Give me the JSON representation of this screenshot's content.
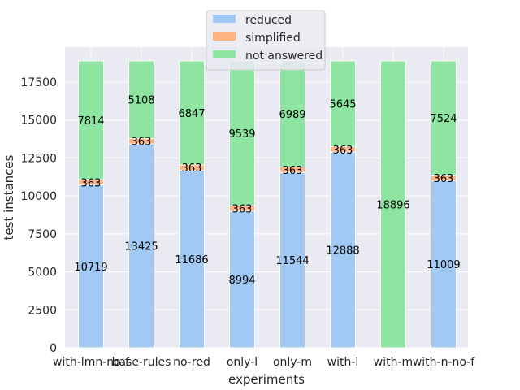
{
  "chart_data": {
    "type": "bar",
    "stacked": true,
    "title": "",
    "xlabel": "experiments",
    "ylabel": "test instances",
    "categories": [
      "with-lmn-no-f",
      "base-rules",
      "no-red",
      "only-l",
      "only-m",
      "with-l",
      "with-m",
      "with-n-no-f"
    ],
    "series": [
      {
        "name": "reduced",
        "color": "#a1c9f4",
        "values": [
          10719,
          13425,
          11686,
          8994,
          11544,
          12888,
          0,
          11009
        ],
        "labels": [
          "10719",
          "13425",
          "11686",
          "8994",
          "11544",
          "12888",
          "",
          "11009"
        ]
      },
      {
        "name": "simplified",
        "color": "#ffb482",
        "values": [
          363,
          363,
          363,
          363,
          363,
          363,
          0,
          363
        ],
        "labels": [
          "363",
          "363",
          "363",
          "363",
          "363",
          "363",
          "",
          "363"
        ]
      },
      {
        "name": "not answered",
        "color": "#8de5a1",
        "values": [
          7814,
          5108,
          6847,
          9539,
          6989,
          5645,
          18896,
          7524
        ],
        "labels": [
          "7814",
          "5108",
          "6847",
          "9539",
          "6989",
          "5645",
          "18896",
          "7524"
        ]
      }
    ],
    "ylim": [
      0,
      18896
    ],
    "yticks": [
      "0",
      "2500",
      "5000",
      "7500",
      "10000",
      "12500",
      "15000",
      "17500"
    ],
    "grid": true,
    "legend_position": "top-center",
    "background": "#eaeaf2"
  }
}
